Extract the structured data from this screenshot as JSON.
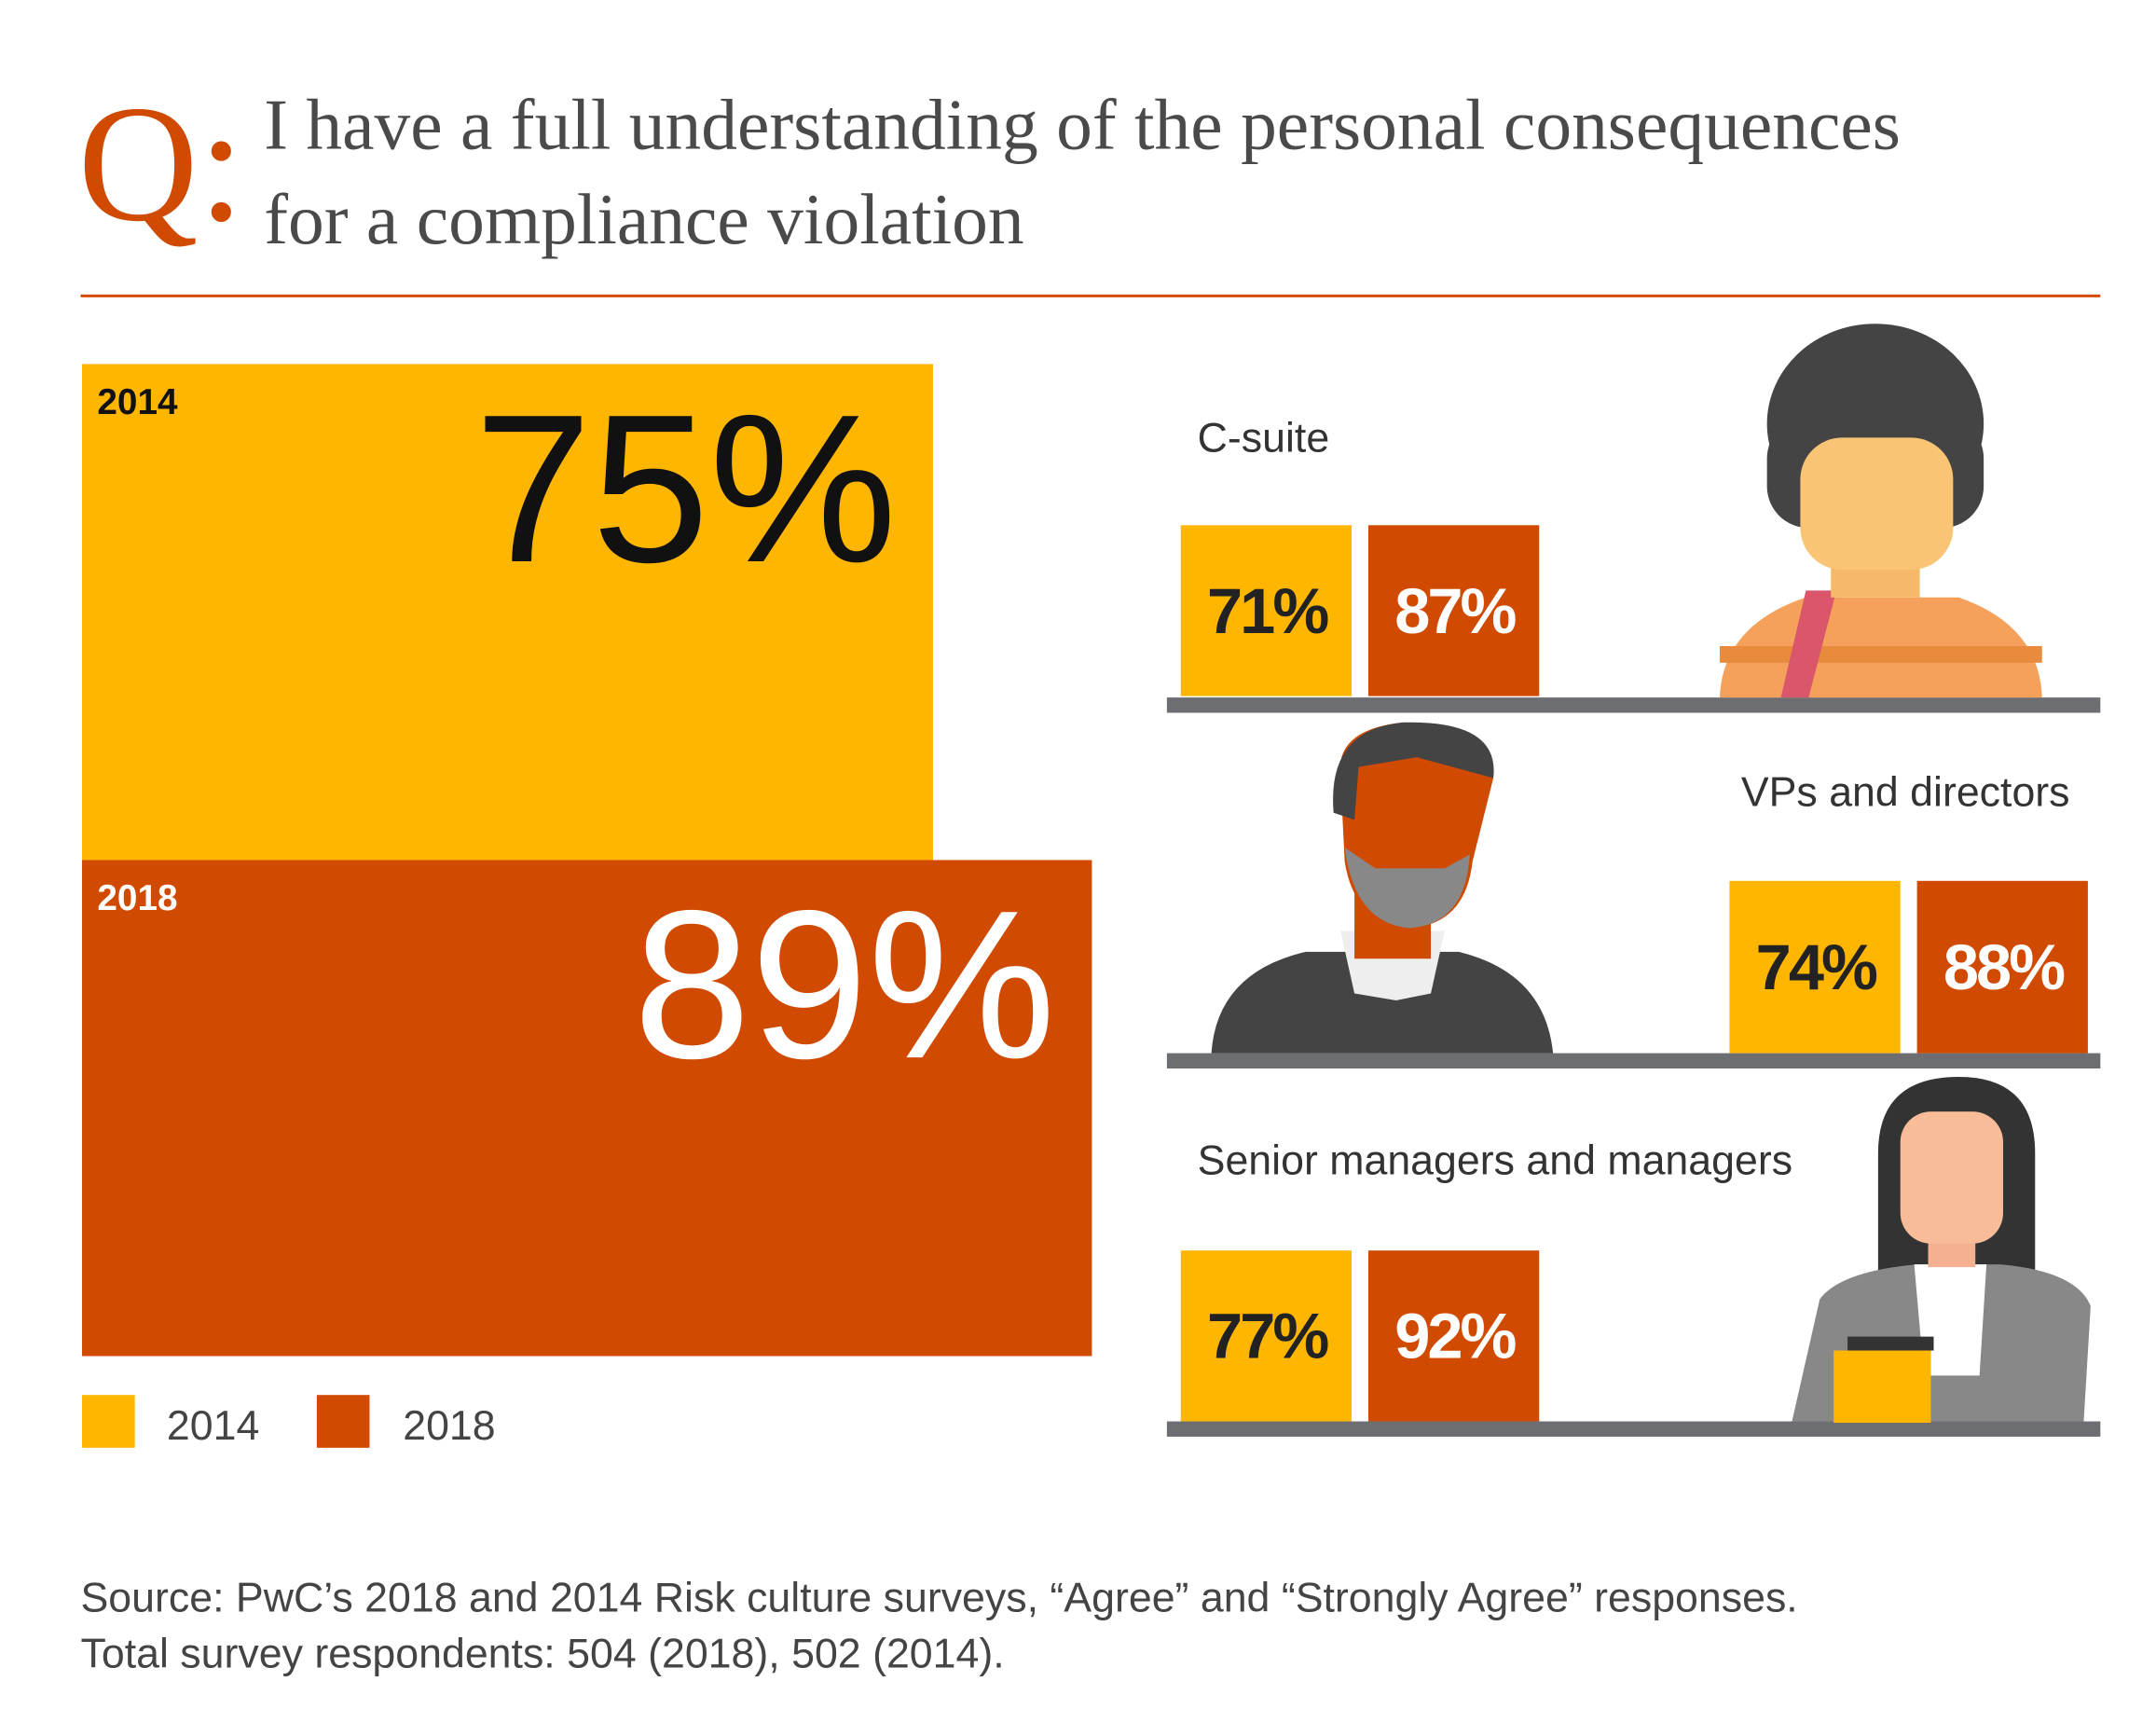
{
  "title_prefix": "Q:",
  "title_lines": [
    "I have a full understanding of the personal consequences",
    "for a compliance violation"
  ],
  "chart_data": {
    "type": "bar",
    "series": [
      {
        "name": "2014",
        "color": "#FFB600",
        "text_color": "#111111",
        "values": [
          75
        ],
        "value_labels": [
          "75%"
        ]
      },
      {
        "name": "2018",
        "color": "#D04A02",
        "text_color": "#ffffff",
        "values": [
          89
        ],
        "value_labels": [
          "89%"
        ]
      }
    ]
  },
  "segments": [
    {
      "name": "C-suite",
      "labels": [
        "71%",
        "87%"
      ]
    },
    {
      "name": "VPs and directors",
      "labels": [
        "74%",
        "88%"
      ]
    },
    {
      "name": "Senior managers and managers",
      "labels": [
        "77%",
        "92%"
      ]
    }
  ],
  "source": [
    "Source: PwC’s 2018 and 2014 Risk culture surveys, “Agree” and “Strongly Agree” responses.",
    "Total survey respondents: 504 (2018), 502 (2014)."
  ]
}
